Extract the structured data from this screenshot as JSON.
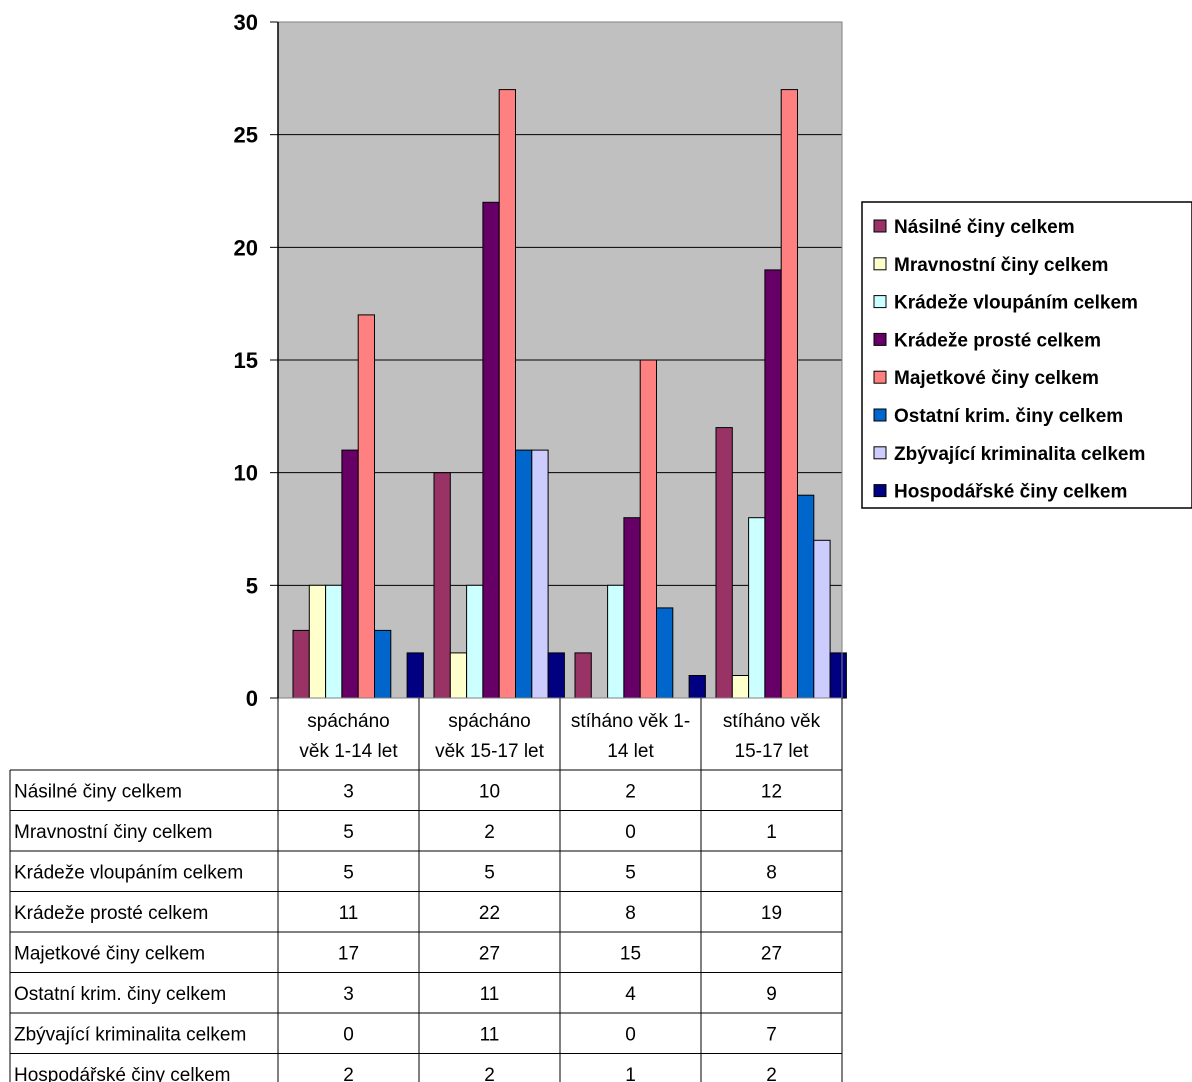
{
  "chart_data": {
    "type": "bar",
    "categories": [
      [
        "spácháno",
        "věk 1-14 let"
      ],
      [
        "spácháno",
        "věk 15-17 let"
      ],
      [
        "stíháno věk 1-",
        "14 let"
      ],
      [
        "stíháno věk",
        "15-17 let"
      ]
    ],
    "series": [
      {
        "name": "Násilné činy celkem",
        "color": "#993366",
        "values": [
          3,
          10,
          2,
          12
        ]
      },
      {
        "name": "Mravnostní činy celkem",
        "color": "#FFFFCC",
        "values": [
          5,
          2,
          0,
          1
        ]
      },
      {
        "name": "Krádeže vloupáním celkem",
        "color": "#CCFFFF",
        "values": [
          5,
          5,
          5,
          8
        ]
      },
      {
        "name": "Krádeže prosté celkem",
        "color": "#660066",
        "values": [
          11,
          22,
          8,
          19
        ]
      },
      {
        "name": "Majetkové činy celkem",
        "color": "#FF8080",
        "values": [
          17,
          27,
          15,
          27
        ]
      },
      {
        "name": "Ostatní krim. činy celkem",
        "color": "#0066CC",
        "values": [
          3,
          11,
          4,
          9
        ]
      },
      {
        "name": "Zbývající kriminalita celkem",
        "color": "#CCCCFF",
        "values": [
          0,
          11,
          0,
          7
        ]
      },
      {
        "name": "Hospodářské činy celkem",
        "color": "#000080",
        "values": [
          2,
          2,
          1,
          2
        ]
      }
    ],
    "ylim": [
      0,
      30
    ],
    "yticks": [
      "0",
      "5",
      "10",
      "15",
      "20",
      "25",
      "30"
    ],
    "plot_background": "#C0C0C0",
    "grid": true,
    "legend": "right",
    "data_table": true
  }
}
